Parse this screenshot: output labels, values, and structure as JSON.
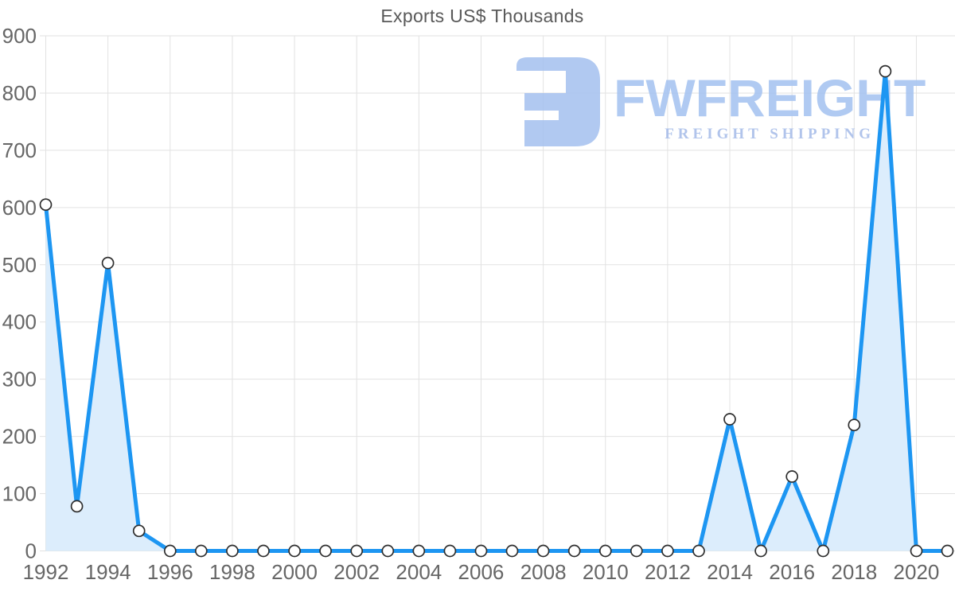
{
  "chart_data": {
    "type": "area",
    "title": "Exports US$ Thousands",
    "x": [
      1992,
      1993,
      1994,
      1995,
      1996,
      1997,
      1998,
      1999,
      2000,
      2001,
      2002,
      2003,
      2004,
      2005,
      2006,
      2007,
      2008,
      2009,
      2010,
      2011,
      2012,
      2013,
      2014,
      2015,
      2016,
      2017,
      2018,
      2019,
      2020,
      2021
    ],
    "values": [
      605,
      78,
      503,
      35,
      0,
      0,
      0,
      0,
      0,
      0,
      0,
      0,
      0,
      0,
      0,
      0,
      0,
      0,
      0,
      0,
      0,
      0,
      230,
      0,
      130,
      0,
      220,
      838,
      0,
      0
    ],
    "series_name": "Exports US$ Thousands",
    "ylim": [
      0,
      900
    ],
    "y_ticks": [
      0,
      100,
      200,
      300,
      400,
      500,
      600,
      700,
      800,
      900
    ],
    "x_tick_labels": [
      "1992",
      "1994",
      "1996",
      "1998",
      "2000",
      "2002",
      "2004",
      "2006",
      "2008",
      "2010",
      "2012",
      "2014",
      "2016",
      "2018",
      "2020"
    ],
    "grid": "on",
    "legend": "none",
    "xlabel": "",
    "ylabel": "",
    "line_color": "#1d96f2",
    "area_color": "#dcedfc",
    "grid_color": "#e2e2e2",
    "axis_label_color": "#666666",
    "title_color": "#595959",
    "marker_fill": "#ffffff",
    "marker_stroke": "#2e2e2e"
  },
  "watermark": {
    "brand": "FWFREIGHT",
    "tagline": "FREIGHT SHIPPING",
    "brand_color": "#a8c5f1",
    "tagline_color": "#a9bee9",
    "icon_color": "#a9c4f0",
    "icon": "fwfreight-logo-icon"
  }
}
